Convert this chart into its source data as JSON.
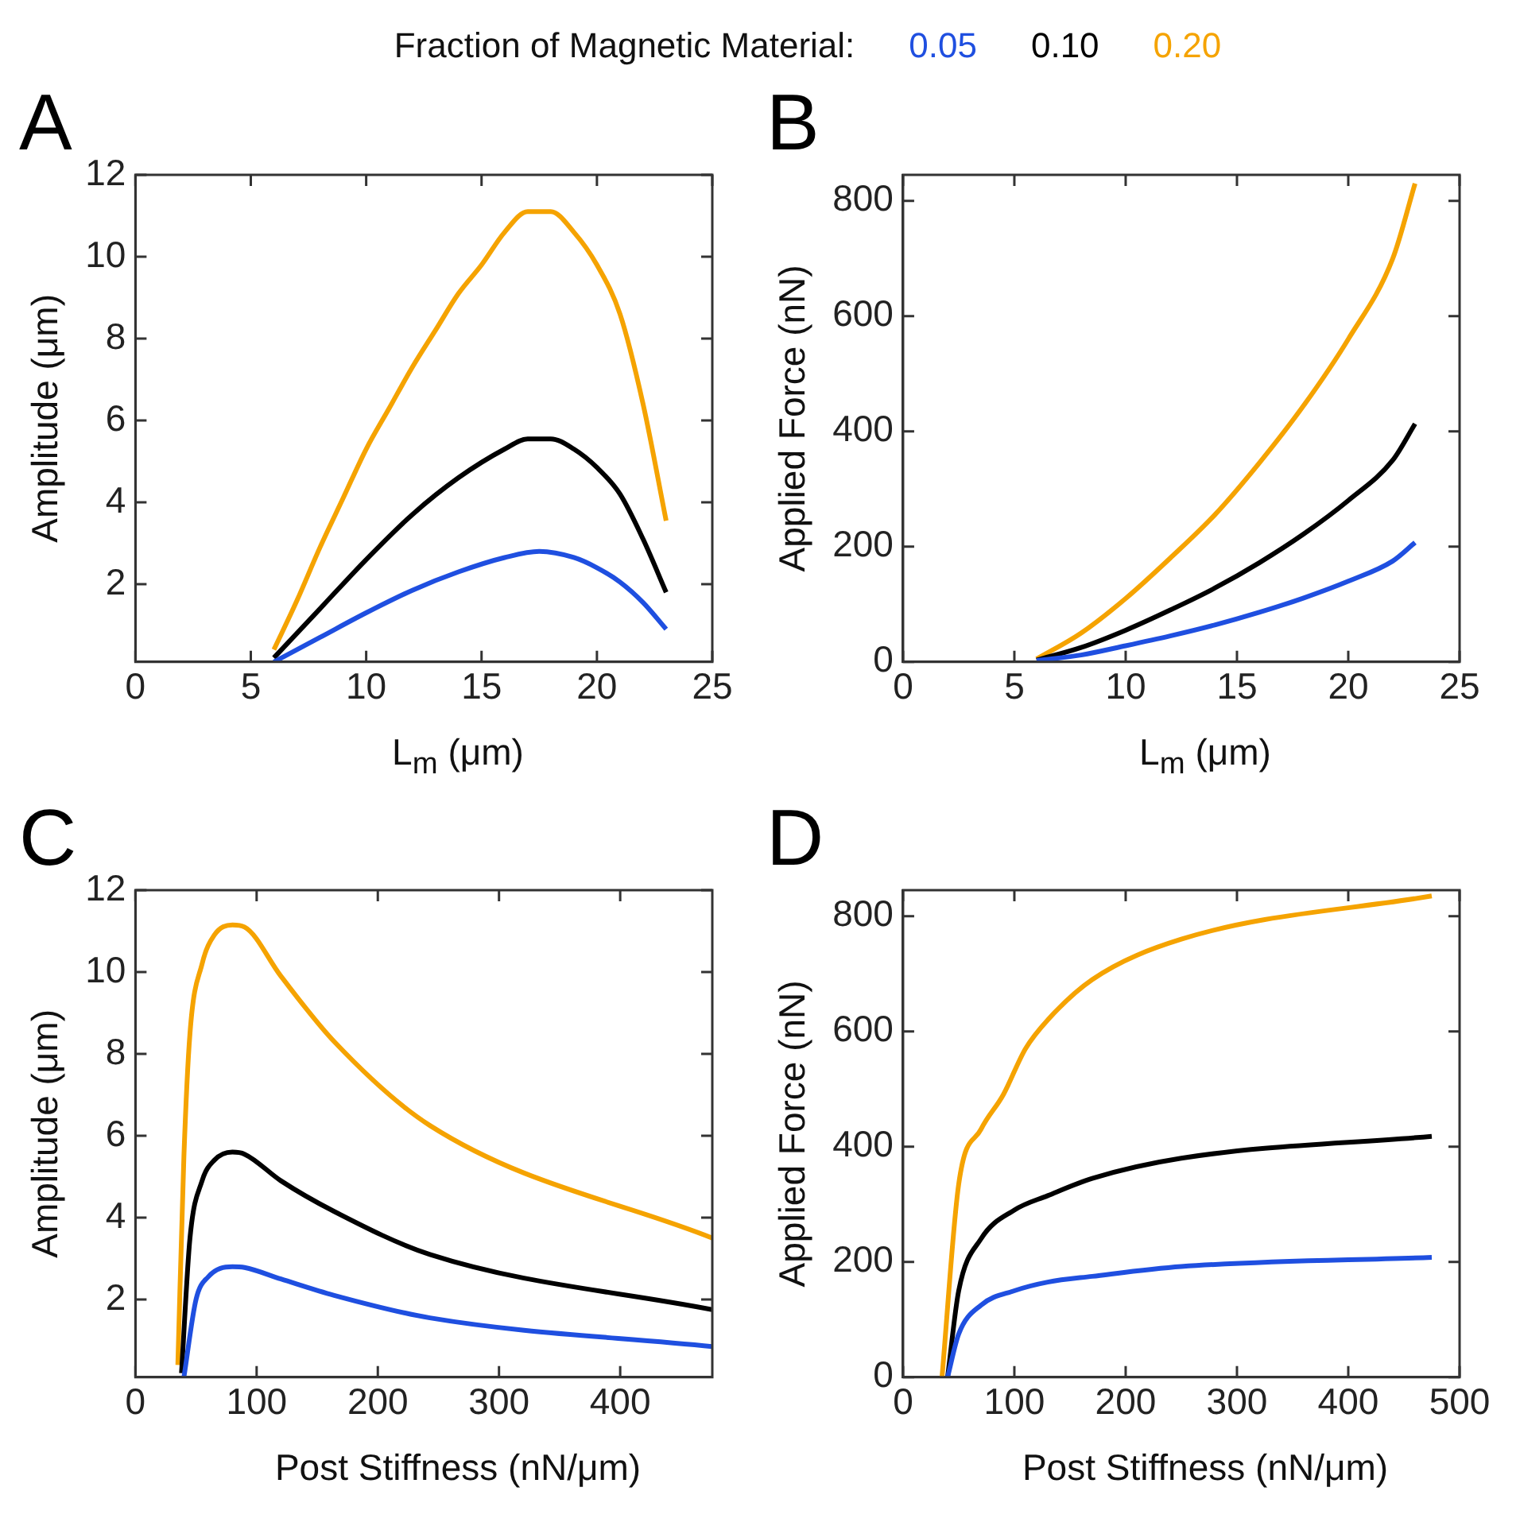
{
  "chart_data": [
    {
      "type": "line",
      "title": "A",
      "xlabel": "L$_{m}$ (μm)",
      "ylabel": "Amplitude (μm)",
      "legend_title": "Fraction of Magnetic Material:",
      "legend": "top",
      "grid": false,
      "marker": "none",
      "line_style": "solid",
      "xlim": [
        0,
        25
      ],
      "xticks": [
        0,
        5,
        10,
        15,
        20,
        25
      ],
      "ylim": [
        0.1,
        12
      ],
      "yticks": [
        2,
        4,
        6,
        8,
        10,
        12
      ],
      "series": [
        {
          "name": "0.05",
          "color": "#1f4fe0",
          "x": [
            6,
            8,
            10,
            12,
            14,
            16,
            17.5,
            19,
            20,
            21,
            22,
            23
          ],
          "values": [
            0.1,
            0.7,
            1.3,
            1.85,
            2.3,
            2.65,
            2.8,
            2.65,
            2.4,
            2.05,
            1.55,
            0.9
          ]
        },
        {
          "name": "0.10",
          "color": "#000000",
          "x": [
            6,
            8,
            10,
            12,
            14,
            16,
            17,
            18,
            19,
            20,
            21,
            22,
            23
          ],
          "values": [
            0.2,
            1.4,
            2.6,
            3.7,
            4.6,
            5.3,
            5.55,
            5.55,
            5.3,
            4.85,
            4.2,
            3.1,
            1.8
          ]
        },
        {
          "name": "0.20",
          "color": "#f5a300",
          "x": [
            6,
            7,
            8,
            9,
            10,
            11,
            12,
            13,
            14,
            15,
            16,
            17,
            18,
            19,
            20,
            21,
            22,
            23
          ],
          "values": [
            0.4,
            1.6,
            2.9,
            4.1,
            5.3,
            6.3,
            7.3,
            8.2,
            9.1,
            9.8,
            10.6,
            11.1,
            11.1,
            10.6,
            9.8,
            8.6,
            6.4,
            3.55
          ]
        }
      ]
    },
    {
      "type": "line",
      "title": "B",
      "xlabel": "L$_{m}$ (μm)",
      "ylabel": "Applied Force (nN)",
      "grid": false,
      "marker": "none",
      "line_style": "solid",
      "xlim": [
        0,
        25
      ],
      "xticks": [
        0,
        5,
        10,
        15,
        20,
        25
      ],
      "ylim": [
        0,
        845
      ],
      "yticks": [
        0,
        200,
        400,
        600,
        800
      ],
      "series": [
        {
          "color": "#1f4fe0",
          "x": [
            6,
            8,
            10,
            12,
            14,
            16,
            18,
            20,
            22,
            23
          ],
          "values": [
            2,
            12,
            28,
            45,
            64,
            86,
            111,
            140,
            175,
            207
          ]
        },
        {
          "color": "#000000",
          "x": [
            6,
            8,
            10,
            12,
            14,
            16,
            18,
            20,
            22,
            23
          ],
          "values": [
            3,
            25,
            55,
            90,
            128,
            172,
            222,
            280,
            350,
            413
          ]
        },
        {
          "color": "#f5a300",
          "x": [
            6,
            8,
            10,
            12,
            14,
            16,
            18,
            20,
            22,
            23
          ],
          "values": [
            5,
            50,
            110,
            180,
            255,
            345,
            445,
            560,
            700,
            830
          ]
        }
      ]
    },
    {
      "type": "line",
      "title": "C",
      "xlabel": "Post Stiffness (nN/μm)",
      "ylabel": "Amplitude (μm)",
      "grid": false,
      "marker": "none",
      "line_style": "solid",
      "xlim": [
        0,
        476
      ],
      "xticks": [
        0,
        100,
        200,
        300,
        400
      ],
      "ylim": [
        0.1,
        12
      ],
      "yticks": [
        2,
        4,
        6,
        8,
        10,
        12
      ],
      "series": [
        {
          "color": "#1f4fe0",
          "x": [
            40,
            50,
            60,
            80,
            90,
            120,
            164,
            243,
            476
          ],
          "values": [
            0.1,
            2.0,
            2.55,
            2.8,
            2.78,
            2.5,
            2.1,
            1.55,
            0.85
          ]
        },
        {
          "color": "#000000",
          "x": [
            38,
            45,
            55,
            65,
            80,
            90,
            120,
            164,
            243,
            476
          ],
          "values": [
            0.2,
            3.5,
            4.9,
            5.4,
            5.6,
            5.55,
            4.9,
            4.15,
            3.1,
            1.75
          ]
        },
        {
          "color": "#f5a300",
          "x": [
            35,
            40,
            45,
            55,
            65,
            80,
            90,
            120,
            164,
            243,
            476
          ],
          "values": [
            0.4,
            5.5,
            8.5,
            10.2,
            10.9,
            11.15,
            11.1,
            9.9,
            8.3,
            6.25,
            3.5
          ]
        }
      ]
    },
    {
      "type": "line",
      "title": "D",
      "xlabel": "Post Stiffness (nN/μm)",
      "ylabel": "Applied Force (nN)",
      "grid": false,
      "marker": "none",
      "line_style": "solid",
      "xlim": [
        0,
        500
      ],
      "xticks": [
        0,
        100,
        200,
        300,
        400,
        500
      ],
      "ylim": [
        0,
        845
      ],
      "yticks": [
        0,
        200,
        400,
        600,
        800
      ],
      "series": [
        {
          "color": "#1f4fe0",
          "x": [
            40,
            50,
            70,
            100,
            130,
            170,
            250,
            475
          ],
          "values": [
            0,
            75,
            125,
            150,
            165,
            175,
            192,
            208
          ]
        },
        {
          "color": "#000000",
          "x": [
            40,
            50,
            70,
            100,
            130,
            170,
            250,
            475
          ],
          "values": [
            0,
            150,
            240,
            290,
            315,
            345,
            380,
            418
          ]
        },
        {
          "color": "#f5a300",
          "x": [
            35,
            50,
            70,
            90,
            110,
            130,
            170,
            250,
            475
          ],
          "values": [
            0,
            335,
            430,
            490,
            570,
            620,
            690,
            760,
            835
          ]
        }
      ]
    }
  ]
}
